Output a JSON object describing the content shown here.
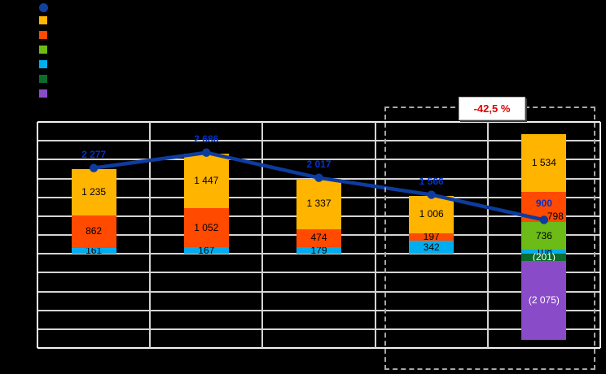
{
  "annotation": {
    "text": "-42,5 %",
    "text_color": "#E00000",
    "box_color": "#FFFFFF",
    "border_color": "#AFAFAF"
  },
  "legend": {
    "position": "top-left",
    "items": [
      {
        "name": "line-series-marker",
        "shape": "circle",
        "color": "#10419E"
      },
      {
        "name": "gold-series-marker",
        "shape": "square",
        "color": "#FFB400"
      },
      {
        "name": "orange-series-marker",
        "shape": "square",
        "color": "#FF4A00"
      },
      {
        "name": "green-series-marker",
        "shape": "square",
        "color": "#6CBB17"
      },
      {
        "name": "cyan-series-marker",
        "shape": "square",
        "color": "#00AEEF"
      },
      {
        "name": "dark-green-series-marker",
        "shape": "square",
        "color": "#0C6B2D"
      },
      {
        "name": "purple-series-marker",
        "shape": "square",
        "color": "#8A4BC9"
      }
    ]
  },
  "chart_data": {
    "type": "bar",
    "subtype": "stacked-bar-with-line",
    "categories": [
      "",
      "",
      "",
      "",
      ""
    ],
    "y_axis": {
      "min": -2500,
      "max": 3500,
      "gridline_step": 500,
      "tick_labels_visible": false
    },
    "grid": true,
    "bar_series": [
      {
        "name": "cyan",
        "color": "#00AEEF",
        "label_color": "#000000",
        "values": [
          161,
          167,
          179,
          342,
          108
        ],
        "labels": [
          "161",
          "167",
          "179",
          "342",
          "108"
        ]
      },
      {
        "name": "green",
        "color": "#6CBB17",
        "label_color": "#000000",
        "values": [
          0,
          0,
          0,
          0,
          736
        ],
        "labels": [
          null,
          null,
          null,
          null,
          "736"
        ]
      },
      {
        "name": "orange-red",
        "color": "#FF4A00",
        "label_color": "#000000",
        "values": [
          862,
          1052,
          474,
          197,
          798
        ],
        "labels": [
          "862",
          "1 052",
          "474",
          "197",
          "798"
        ]
      },
      {
        "name": "gold",
        "color": "#FFB400",
        "label_color": "#000000",
        "values": [
          1235,
          1447,
          1337,
          1006,
          1534
        ],
        "labels": [
          "1 235",
          "1 447",
          "1 337",
          "1 006",
          "1 534"
        ]
      },
      {
        "name": "dark-green",
        "color": "#0C6B2D",
        "label_color": "#FFFFFF",
        "values": [
          0,
          0,
          0,
          0,
          -201
        ],
        "labels": [
          null,
          null,
          null,
          null,
          "(201)"
        ]
      },
      {
        "name": "purple",
        "color": "#8A4BC9",
        "label_color": "#FFFFFF",
        "values": [
          0,
          0,
          0,
          0,
          -2075
        ],
        "labels": [
          null,
          null,
          null,
          null,
          "(2 075)"
        ]
      }
    ],
    "line_series": {
      "name": "net-total-line",
      "color": "#0D3C9E",
      "label_color": "#0033CC",
      "values": [
        2277,
        2686,
        2017,
        1566,
        900
      ],
      "labels": [
        "2 277",
        "2 686",
        "2 017",
        "1 566",
        "900"
      ]
    },
    "highlight": {
      "last_two_categories": true,
      "delta_label": "-42,5 %"
    }
  }
}
